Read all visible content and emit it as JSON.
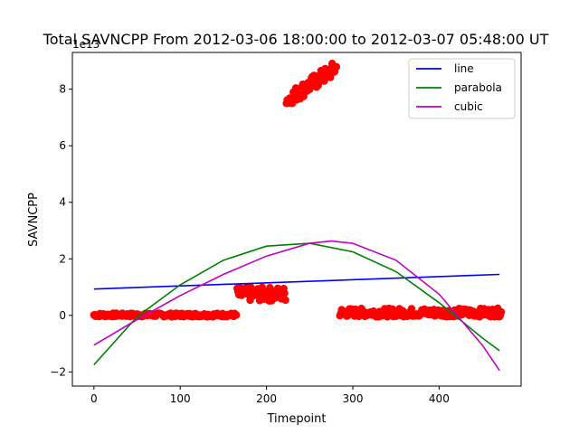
{
  "chart_data": {
    "type": "scatter",
    "title": "Total SAVNCPP From 2012-03-06 18:00:00 to 2012-03-07 05:48:00 UT",
    "xlabel": "Timepoint",
    "ylabel": "SAVNCPP",
    "y_offset_label": "1e13",
    "xlim": [
      -25,
      495
    ],
    "ylim": [
      -2.5,
      9.3
    ],
    "xticks": [
      0,
      100,
      200,
      300,
      400
    ],
    "yticks": [
      -2,
      0,
      2,
      4,
      6,
      8
    ],
    "grid": false,
    "legend_position": "top-right",
    "scatter_color": "#ff0000",
    "scatter_segments": [
      {
        "x_start": 0,
        "x_end": 165,
        "y_min": -0.05,
        "y_max": 0.08
      },
      {
        "x_start": 166,
        "x_end": 222,
        "y_min": 0.5,
        "y_max": 1.0
      },
      {
        "x_start": 223,
        "x_end": 281,
        "y_min": 7.5,
        "y_max": 8.95
      },
      {
        "x_start": 285,
        "x_end": 472,
        "y_min": -0.05,
        "y_max": 0.25
      }
    ],
    "series": [
      {
        "name": "line",
        "color": "#0000ff",
        "x": [
          0,
          470
        ],
        "y": [
          0.93,
          1.45
        ]
      },
      {
        "name": "parabola",
        "color": "#008000",
        "x": [
          0,
          50,
          100,
          150,
          200,
          250,
          300,
          350,
          400,
          450,
          470
        ],
        "y": [
          -1.75,
          -0.05,
          1.08,
          1.95,
          2.45,
          2.55,
          2.25,
          1.55,
          0.45,
          -0.8,
          -1.25
        ]
      },
      {
        "name": "cubic",
        "color": "#bf00bf",
        "x": [
          0,
          50,
          100,
          150,
          200,
          250,
          275,
          300,
          350,
          400,
          450,
          470
        ],
        "y": [
          -1.05,
          -0.15,
          0.7,
          1.45,
          2.1,
          2.55,
          2.63,
          2.55,
          1.95,
          0.75,
          -1.05,
          -1.95
        ]
      }
    ]
  }
}
